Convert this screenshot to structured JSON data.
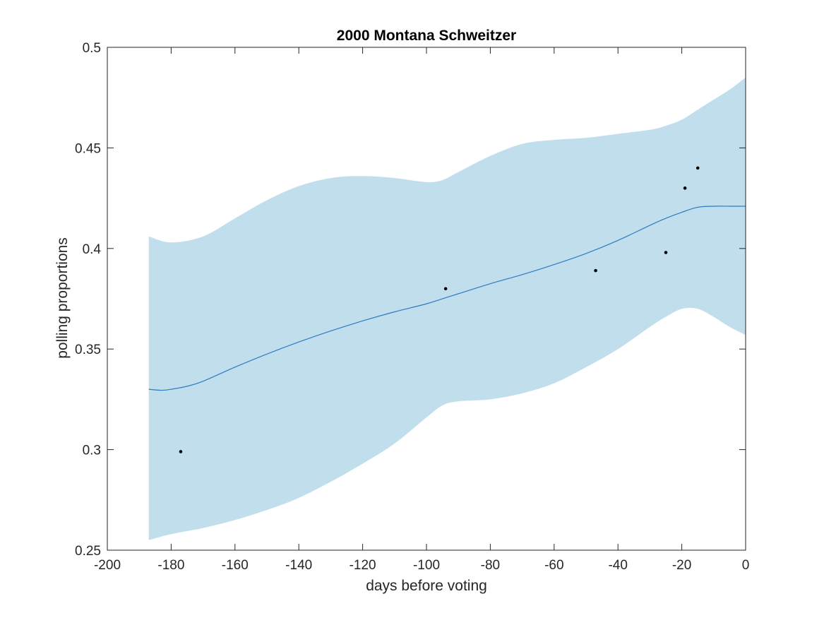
{
  "chart_data": {
    "type": "line",
    "title": "2000 Montana Schweitzer",
    "xlabel": "days before voting",
    "ylabel": "polling proportions",
    "xlim": [
      -200,
      0
    ],
    "ylim": [
      0.25,
      0.5
    ],
    "xticks": [
      -200,
      -180,
      -160,
      -140,
      -120,
      -100,
      -80,
      -60,
      -40,
      -20,
      0
    ],
    "yticks": [
      0.25,
      0.3,
      0.35,
      0.4,
      0.45,
      0.5
    ],
    "xtick_labels": [
      "-200",
      "-180",
      "-160",
      "-140",
      "-120",
      "-100",
      "-80",
      "-60",
      "-40",
      "-20",
      "0"
    ],
    "ytick_labels": [
      "0.25",
      "0.3",
      "0.35",
      "0.4",
      "0.45",
      "0.5"
    ],
    "grid": false,
    "colors": {
      "band": "#c1deec",
      "line": "#2f7bbf",
      "points": "#000000",
      "axes": "#262626"
    },
    "series": [
      {
        "kind": "band",
        "x": [
          -187,
          -180,
          -170,
          -160,
          -150,
          -140,
          -130,
          -120,
          -110,
          -100,
          -95,
          -90,
          -80,
          -70,
          -60,
          -50,
          -40,
          -30,
          -25,
          -20,
          -15,
          -10,
          -5,
          0
        ],
        "upper": [
          0.406,
          0.403,
          0.406,
          0.415,
          0.424,
          0.431,
          0.435,
          0.436,
          0.435,
          0.433,
          0.434,
          0.438,
          0.446,
          0.452,
          0.454,
          0.455,
          0.457,
          0.459,
          0.461,
          0.464,
          0.469,
          0.474,
          0.479,
          0.485
        ],
        "lower": [
          0.255,
          0.258,
          0.261,
          0.265,
          0.27,
          0.276,
          0.284,
          0.293,
          0.303,
          0.316,
          0.322,
          0.324,
          0.325,
          0.328,
          0.333,
          0.341,
          0.35,
          0.361,
          0.366,
          0.37,
          0.37,
          0.366,
          0.361,
          0.357
        ]
      },
      {
        "kind": "line",
        "x": [
          -187,
          -183,
          -180,
          -175,
          -170,
          -160,
          -150,
          -140,
          -130,
          -120,
          -110,
          -100,
          -94,
          -90,
          -80,
          -70,
          -60,
          -50,
          -40,
          -30,
          -25,
          -20,
          -15,
          -10,
          -5,
          0
        ],
        "y": [
          0.33,
          0.3295,
          0.33,
          0.3315,
          0.334,
          0.341,
          0.3475,
          0.3535,
          0.359,
          0.364,
          0.3685,
          0.3725,
          0.3755,
          0.3775,
          0.3825,
          0.387,
          0.392,
          0.3975,
          0.404,
          0.4115,
          0.415,
          0.418,
          0.4205,
          0.421,
          0.421,
          0.421
        ]
      },
      {
        "kind": "scatter",
        "x": [
          -177,
          -94,
          -47,
          -25,
          -19,
          -15
        ],
        "y": [
          0.299,
          0.38,
          0.389,
          0.398,
          0.43,
          0.44
        ]
      }
    ]
  }
}
